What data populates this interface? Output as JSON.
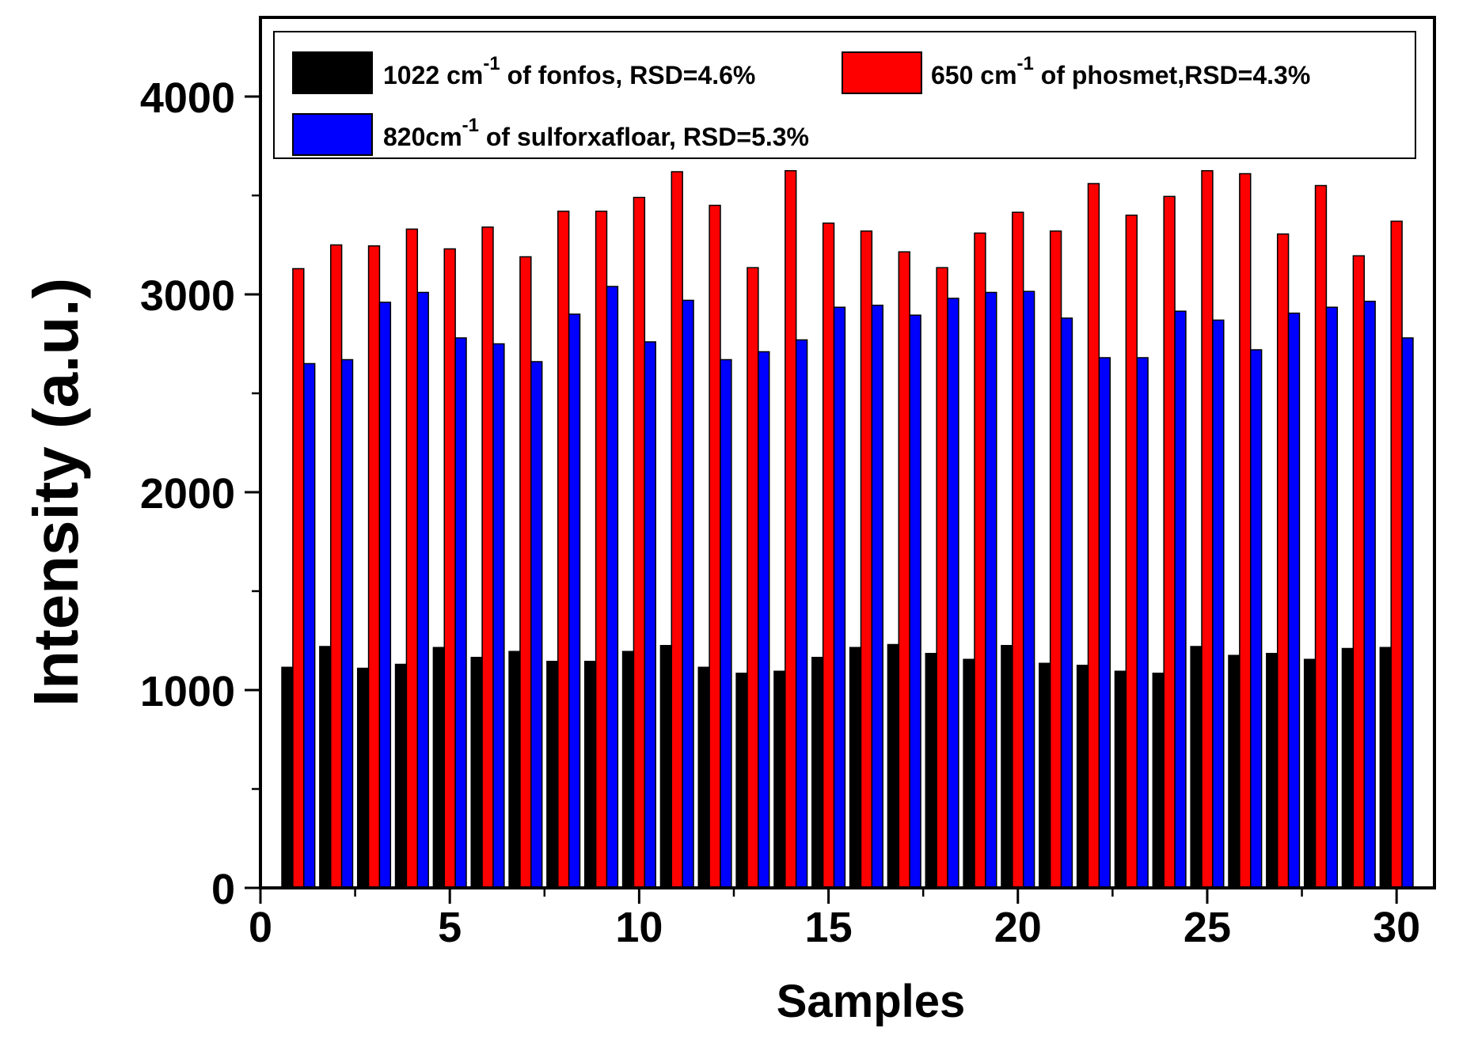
{
  "chart_data": {
    "type": "bar",
    "xlabel": "Samples",
    "ylabel": "Intensity (a.u.)",
    "xlim": [
      0,
      31
    ],
    "ylim": [
      0,
      4400
    ],
    "x_ticks": [
      0,
      5,
      10,
      15,
      20,
      25,
      30
    ],
    "y_ticks": [
      0,
      1000,
      2000,
      3000,
      4000
    ],
    "grid": false,
    "legend_position": "top",
    "x": [
      1,
      2,
      3,
      4,
      5,
      6,
      7,
      8,
      9,
      10,
      11,
      12,
      13,
      14,
      15,
      16,
      17,
      18,
      19,
      20,
      21,
      22,
      23,
      24,
      25,
      26,
      27,
      28,
      29,
      30
    ],
    "series": [
      {
        "label_main": "1022 cm",
        "label_sup": "-1",
        "label_rest": " of fonfos, RSD=4.6%",
        "color": "#000000",
        "values": [
          1115,
          1220,
          1110,
          1130,
          1215,
          1165,
          1195,
          1145,
          1145,
          1195,
          1225,
          1115,
          1085,
          1095,
          1165,
          1215,
          1230,
          1185,
          1155,
          1225,
          1135,
          1125,
          1095,
          1085,
          1220,
          1175,
          1185,
          1155,
          1210,
          1215
        ]
      },
      {
        "label_main": "650 cm",
        "label_sup": "-1",
        "label_rest": " of phosmet,RSD=4.3%",
        "color": "#ff0000",
        "values": [
          3130,
          3250,
          3245,
          3330,
          3230,
          3340,
          3190,
          3420,
          3420,
          3490,
          3620,
          3450,
          3135,
          3625,
          3360,
          3320,
          3215,
          3135,
          3310,
          3415,
          3320,
          3560,
          3400,
          3495,
          3625,
          3610,
          3305,
          3550,
          3195,
          3370
        ]
      },
      {
        "label_main": "820cm",
        "label_sup": "-1",
        "label_rest": " of sulforxafloar, RSD=5.3%",
        "color": "#0000ff",
        "values": [
          2650,
          2670,
          2960,
          3010,
          2780,
          2750,
          2660,
          2900,
          3040,
          2760,
          2970,
          2670,
          2710,
          2770,
          2935,
          2945,
          2895,
          2980,
          3010,
          3015,
          2880,
          2680,
          2680,
          2915,
          2870,
          2720,
          2905,
          2935,
          2965,
          2780
        ]
      }
    ]
  }
}
